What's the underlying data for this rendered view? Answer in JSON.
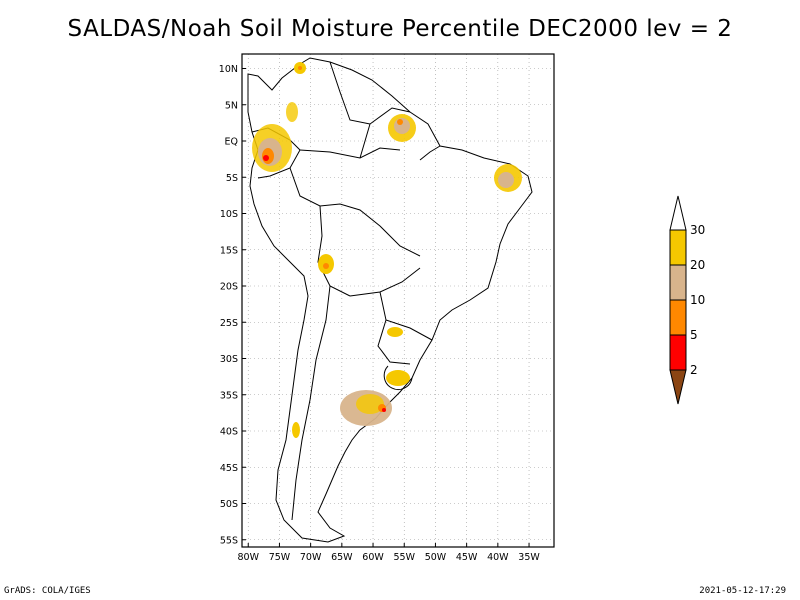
{
  "title": "SALDAS/Noah Soil Moisture Percentile DEC2000 lev = 2",
  "map": {
    "lat_ticks": [
      "10N",
      "5N",
      "EQ",
      "5S",
      "10S",
      "15S",
      "20S",
      "25S",
      "30S",
      "35S",
      "40S",
      "45S",
      "50S",
      "55S"
    ],
    "lon_ticks": [
      "80W",
      "75W",
      "70W",
      "65W",
      "60W",
      "55W",
      "50W",
      "45W",
      "40W",
      "35W"
    ],
    "lat_range": [
      12,
      -56
    ],
    "lon_range": [
      -81,
      -31
    ]
  },
  "legend": {
    "labels": [
      "30",
      "20",
      "10",
      "5",
      "2"
    ],
    "colors": [
      "#ffffff",
      "#f5c800",
      "#d8b48c",
      "#ff8800",
      "#ff0000",
      "#8b4513"
    ]
  },
  "footer": {
    "left": "GrADS: COLA/IGES",
    "right": "2021-05-12-17:29"
  }
}
